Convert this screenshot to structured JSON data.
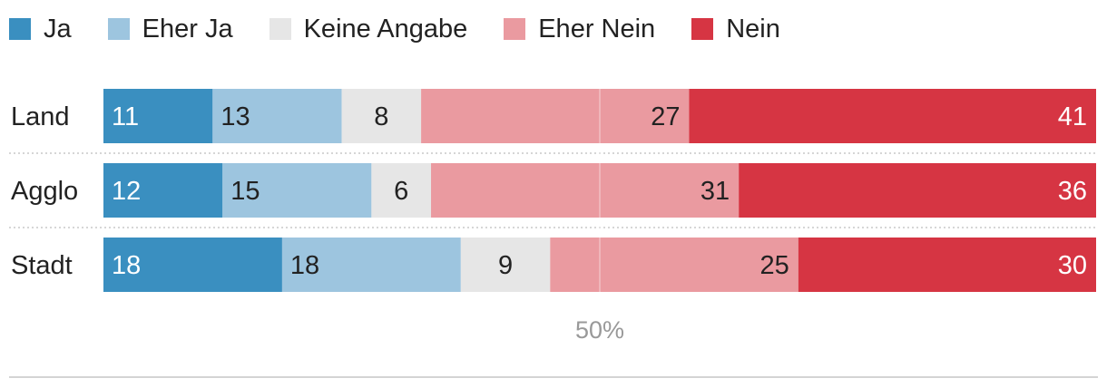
{
  "chart_data": {
    "type": "bar",
    "orientation": "horizontal",
    "stacked": true,
    "normalized": true,
    "categories": [
      "Land",
      "Agglo",
      "Stadt"
    ],
    "series": [
      {
        "name": "Ja",
        "color": "#3a8fc0",
        "label_color": "#ffffff",
        "values": [
          11,
          12,
          18
        ]
      },
      {
        "name": "Eher Ja",
        "color": "#9dc5df",
        "label_color": "#222222",
        "values": [
          13,
          15,
          18
        ]
      },
      {
        "name": "Keine Angabe",
        "color": "#e6e6e6",
        "label_color": "#222222",
        "values": [
          8,
          6,
          9
        ]
      },
      {
        "name": "Eher Nein",
        "color": "#ea9aa0",
        "label_color": "#222222",
        "values": [
          27,
          31,
          25
        ]
      },
      {
        "name": "Nein",
        "color": "#d63543",
        "label_color": "#ffffff",
        "values": [
          41,
          36,
          30
        ]
      }
    ],
    "reference_line": {
      "value": 50,
      "label": "50%"
    },
    "legend_position": "top-left"
  }
}
